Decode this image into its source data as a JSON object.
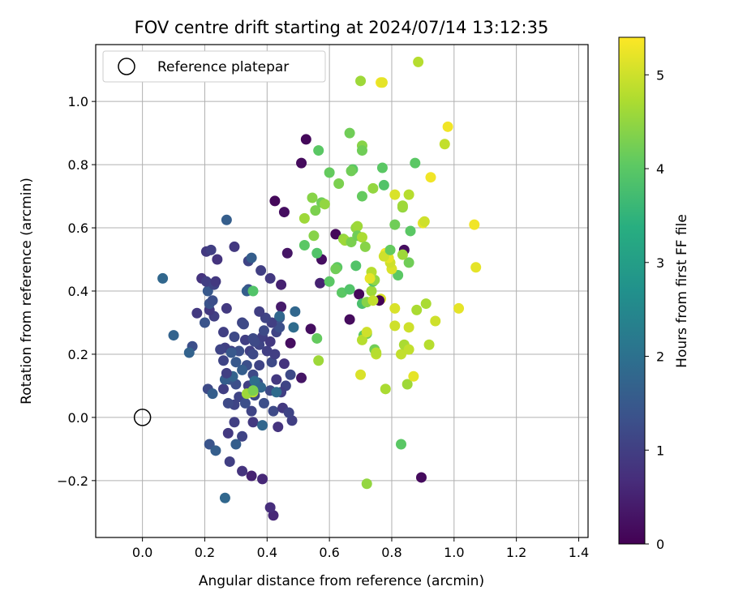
{
  "chart_data": {
    "type": "scatter",
    "title": "FOV centre drift starting at 2024/07/14 13:12:35",
    "xlabel": "Angular distance from reference (arcmin)",
    "ylabel": "Rotation from reference (arcmin)",
    "xlim": [
      -0.15,
      1.43
    ],
    "ylim": [
      -0.38,
      1.18
    ],
    "xticks": [
      "0.0",
      "0.2",
      "0.4",
      "0.6",
      "0.8",
      "1.0",
      "1.2",
      "1.4"
    ],
    "xtick_values": [
      0.0,
      0.2,
      0.4,
      0.6,
      0.8,
      1.0,
      1.2,
      1.4
    ],
    "yticks": [
      "−0.2",
      "0.0",
      "0.2",
      "0.4",
      "0.6",
      "0.8",
      "1.0"
    ],
    "ytick_values": [
      -0.2,
      0.0,
      0.2,
      0.4,
      0.6,
      0.8,
      1.0
    ],
    "grid": true,
    "colormap": "viridis",
    "colorbar": {
      "label": "Hours from first FF file",
      "range": [
        0,
        5.4
      ],
      "ticks": [
        "0",
        "1",
        "2",
        "3",
        "4",
        "5"
      ],
      "tick_values": [
        0,
        1,
        2,
        3,
        4,
        5
      ]
    },
    "legend": {
      "placement": "upper left",
      "label": "Reference platepar"
    },
    "reference": {
      "x": 0.0,
      "y": 0.0
    },
    "points": [
      {
        "x": 0.525,
        "y": 0.88,
        "c": 0.1
      },
      {
        "x": 0.51,
        "y": 0.805,
        "c": 0.15
      },
      {
        "x": 0.425,
        "y": 0.685,
        "c": 0.1
      },
      {
        "x": 0.455,
        "y": 0.65,
        "c": 0.2
      },
      {
        "x": 0.62,
        "y": 0.58,
        "c": 0.1
      },
      {
        "x": 0.575,
        "y": 0.5,
        "c": 0.2
      },
      {
        "x": 0.665,
        "y": 0.31,
        "c": 0.15
      },
      {
        "x": 0.695,
        "y": 0.39,
        "c": 0.1
      },
      {
        "x": 0.84,
        "y": 0.53,
        "c": 0.2
      },
      {
        "x": 0.895,
        "y": -0.19,
        "c": 0.15
      },
      {
        "x": 0.54,
        "y": 0.28,
        "c": 0.2
      },
      {
        "x": 0.475,
        "y": 0.235,
        "c": 0.2
      },
      {
        "x": 0.51,
        "y": 0.125,
        "c": 0.3
      },
      {
        "x": 0.465,
        "y": 0.52,
        "c": 0.3
      },
      {
        "x": 0.445,
        "y": 0.42,
        "c": 0.5
      },
      {
        "x": 0.445,
        "y": 0.35,
        "c": 0.4
      },
      {
        "x": 0.57,
        "y": 0.425,
        "c": 0.5
      },
      {
        "x": 0.42,
        "y": -0.31,
        "c": 0.6
      },
      {
        "x": 0.41,
        "y": -0.285,
        "c": 0.7
      },
      {
        "x": 0.385,
        "y": -0.195,
        "c": 0.6
      },
      {
        "x": 0.35,
        "y": -0.185,
        "c": 0.5
      },
      {
        "x": 0.32,
        "y": -0.17,
        "c": 0.8
      },
      {
        "x": 0.28,
        "y": -0.14,
        "c": 1.0
      },
      {
        "x": 0.275,
        "y": -0.05,
        "c": 0.9
      },
      {
        "x": 0.32,
        "y": -0.06,
        "c": 1.1
      },
      {
        "x": 0.295,
        "y": -0.015,
        "c": 1.0
      },
      {
        "x": 0.35,
        "y": 0.02,
        "c": 1.1
      },
      {
        "x": 0.355,
        "y": -0.015,
        "c": 0.9
      },
      {
        "x": 0.435,
        "y": -0.03,
        "c": 0.8
      },
      {
        "x": 0.48,
        "y": -0.01,
        "c": 1.0
      },
      {
        "x": 0.42,
        "y": 0.02,
        "c": 1.2
      },
      {
        "x": 0.45,
        "y": 0.03,
        "c": 0.9
      },
      {
        "x": 0.47,
        "y": 0.015,
        "c": 1.1
      },
      {
        "x": 0.39,
        "y": 0.045,
        "c": 1.3
      },
      {
        "x": 0.41,
        "y": 0.085,
        "c": 1.2
      },
      {
        "x": 0.46,
        "y": 0.1,
        "c": 1.1
      },
      {
        "x": 0.43,
        "y": 0.12,
        "c": 0.9
      },
      {
        "x": 0.445,
        "y": 0.08,
        "c": 1.0
      },
      {
        "x": 0.475,
        "y": 0.135,
        "c": 1.2
      },
      {
        "x": 0.455,
        "y": 0.17,
        "c": 0.8
      },
      {
        "x": 0.415,
        "y": 0.175,
        "c": 1.2
      },
      {
        "x": 0.425,
        "y": 0.2,
        "c": 1.0
      },
      {
        "x": 0.375,
        "y": 0.165,
        "c": 1.1
      },
      {
        "x": 0.345,
        "y": 0.21,
        "c": 1.0
      },
      {
        "x": 0.33,
        "y": 0.245,
        "c": 1.0
      },
      {
        "x": 0.355,
        "y": 0.25,
        "c": 1.2
      },
      {
        "x": 0.375,
        "y": 0.23,
        "c": 1.1
      },
      {
        "x": 0.385,
        "y": 0.255,
        "c": 1.0
      },
      {
        "x": 0.41,
        "y": 0.24,
        "c": 0.9
      },
      {
        "x": 0.43,
        "y": 0.27,
        "c": 1.1
      },
      {
        "x": 0.44,
        "y": 0.285,
        "c": 1.3
      },
      {
        "x": 0.44,
        "y": 0.315,
        "c": 1.4
      },
      {
        "x": 0.415,
        "y": 0.3,
        "c": 1.0
      },
      {
        "x": 0.395,
        "y": 0.315,
        "c": 1.1
      },
      {
        "x": 0.375,
        "y": 0.335,
        "c": 1.0
      },
      {
        "x": 0.39,
        "y": 0.275,
        "c": 1.2
      },
      {
        "x": 0.4,
        "y": 0.21,
        "c": 1.0
      },
      {
        "x": 0.355,
        "y": 0.2,
        "c": 1.2
      },
      {
        "x": 0.335,
        "y": 0.165,
        "c": 1.3
      },
      {
        "x": 0.355,
        "y": 0.135,
        "c": 1.2
      },
      {
        "x": 0.37,
        "y": 0.11,
        "c": 1.3
      },
      {
        "x": 0.34,
        "y": 0.1,
        "c": 1.0
      },
      {
        "x": 0.36,
        "y": 0.07,
        "c": 1.2
      },
      {
        "x": 0.31,
        "y": 0.065,
        "c": 1.1
      },
      {
        "x": 0.33,
        "y": 0.045,
        "c": 1.3
      },
      {
        "x": 0.295,
        "y": 0.04,
        "c": 1.1
      },
      {
        "x": 0.275,
        "y": 0.045,
        "c": 1.2
      },
      {
        "x": 0.26,
        "y": 0.09,
        "c": 1.0
      },
      {
        "x": 0.3,
        "y": 0.105,
        "c": 1.3
      },
      {
        "x": 0.28,
        "y": 0.12,
        "c": 1.4
      },
      {
        "x": 0.265,
        "y": 0.12,
        "c": 1.6
      },
      {
        "x": 0.29,
        "y": 0.13,
        "c": 1.7
      },
      {
        "x": 0.32,
        "y": 0.15,
        "c": 1.6
      },
      {
        "x": 0.3,
        "y": 0.175,
        "c": 1.5
      },
      {
        "x": 0.285,
        "y": 0.21,
        "c": 1.0
      },
      {
        "x": 0.265,
        "y": 0.22,
        "c": 1.0
      },
      {
        "x": 0.26,
        "y": 0.18,
        "c": 1.1
      },
      {
        "x": 0.27,
        "y": 0.14,
        "c": 1.0
      },
      {
        "x": 0.25,
        "y": 0.215,
        "c": 1.1
      },
      {
        "x": 0.26,
        "y": 0.27,
        "c": 1.0
      },
      {
        "x": 0.295,
        "y": 0.255,
        "c": 1.2
      },
      {
        "x": 0.32,
        "y": 0.3,
        "c": 1.1
      },
      {
        "x": 0.325,
        "y": 0.295,
        "c": 1.2
      },
      {
        "x": 0.31,
        "y": 0.21,
        "c": 1.3
      },
      {
        "x": 0.36,
        "y": 0.24,
        "c": 1.2
      },
      {
        "x": 0.27,
        "y": 0.345,
        "c": 0.9
      },
      {
        "x": 0.23,
        "y": 0.32,
        "c": 1.0
      },
      {
        "x": 0.215,
        "y": 0.34,
        "c": 0.9
      },
      {
        "x": 0.2,
        "y": 0.3,
        "c": 1.4
      },
      {
        "x": 0.175,
        "y": 0.33,
        "c": 0.9
      },
      {
        "x": 0.21,
        "y": 0.4,
        "c": 1.5
      },
      {
        "x": 0.215,
        "y": 0.36,
        "c": 1.4
      },
      {
        "x": 0.225,
        "y": 0.37,
        "c": 1.3
      },
      {
        "x": 0.19,
        "y": 0.44,
        "c": 0.8
      },
      {
        "x": 0.205,
        "y": 0.43,
        "c": 1.0
      },
      {
        "x": 0.23,
        "y": 0.42,
        "c": 1.1
      },
      {
        "x": 0.235,
        "y": 0.43,
        "c": 0.9
      },
      {
        "x": 0.205,
        "y": 0.525,
        "c": 0.9
      },
      {
        "x": 0.22,
        "y": 0.53,
        "c": 1.0
      },
      {
        "x": 0.24,
        "y": 0.5,
        "c": 0.8
      },
      {
        "x": 0.295,
        "y": 0.54,
        "c": 0.9
      },
      {
        "x": 0.27,
        "y": 0.625,
        "c": 1.6
      },
      {
        "x": 0.34,
        "y": 0.495,
        "c": 1.1
      },
      {
        "x": 0.35,
        "y": 0.505,
        "c": 1.6
      },
      {
        "x": 0.38,
        "y": 0.465,
        "c": 1.0
      },
      {
        "x": 0.41,
        "y": 0.44,
        "c": 0.9
      },
      {
        "x": 0.34,
        "y": 0.405,
        "c": 1.3
      },
      {
        "x": 0.335,
        "y": 0.4,
        "c": 1.6
      },
      {
        "x": 0.16,
        "y": 0.225,
        "c": 1.3
      },
      {
        "x": 0.15,
        "y": 0.205,
        "c": 1.7
      },
      {
        "x": 0.1,
        "y": 0.26,
        "c": 1.7
      },
      {
        "x": 0.065,
        "y": 0.44,
        "c": 1.8
      },
      {
        "x": 0.21,
        "y": 0.09,
        "c": 1.2
      },
      {
        "x": 0.225,
        "y": 0.075,
        "c": 1.6
      },
      {
        "x": 0.215,
        "y": -0.085,
        "c": 1.4
      },
      {
        "x": 0.235,
        "y": -0.105,
        "c": 1.6
      },
      {
        "x": 0.3,
        "y": -0.085,
        "c": 1.6
      },
      {
        "x": 0.265,
        "y": -0.255,
        "c": 1.8
      },
      {
        "x": 0.385,
        "y": -0.025,
        "c": 1.8
      },
      {
        "x": 0.36,
        "y": 0.115,
        "c": 1.9
      },
      {
        "x": 0.38,
        "y": 0.095,
        "c": 1.8
      },
      {
        "x": 0.43,
        "y": 0.08,
        "c": 1.9
      },
      {
        "x": 0.49,
        "y": 0.335,
        "c": 1.8
      },
      {
        "x": 0.485,
        "y": 0.285,
        "c": 1.9
      },
      {
        "x": 0.44,
        "y": 0.32,
        "c": 1.8
      },
      {
        "x": 0.285,
        "y": 0.205,
        "c": 1.5
      },
      {
        "x": 0.355,
        "y": 0.08,
        "c": 4.9
      },
      {
        "x": 0.335,
        "y": 0.075,
        "c": 4.6
      },
      {
        "x": 0.355,
        "y": 0.085,
        "c": 4.3
      },
      {
        "x": 0.355,
        "y": 0.4,
        "c": 3.9
      },
      {
        "x": 0.52,
        "y": 0.545,
        "c": 4.0
      },
      {
        "x": 0.55,
        "y": 0.575,
        "c": 4.4
      },
      {
        "x": 0.545,
        "y": 0.695,
        "c": 4.4
      },
      {
        "x": 0.555,
        "y": 0.655,
        "c": 4.3
      },
      {
        "x": 0.52,
        "y": 0.63,
        "c": 4.6
      },
      {
        "x": 0.565,
        "y": 0.845,
        "c": 4.0
      },
      {
        "x": 0.575,
        "y": 0.68,
        "c": 4.2
      },
      {
        "x": 0.585,
        "y": 0.675,
        "c": 4.5
      },
      {
        "x": 0.6,
        "y": 0.775,
        "c": 4.1
      },
      {
        "x": 0.63,
        "y": 0.74,
        "c": 4.3
      },
      {
        "x": 0.625,
        "y": 0.475,
        "c": 4.0
      },
      {
        "x": 0.62,
        "y": 0.47,
        "c": 4.2
      },
      {
        "x": 0.6,
        "y": 0.43,
        "c": 4.0
      },
      {
        "x": 0.56,
        "y": 0.52,
        "c": 3.9
      },
      {
        "x": 0.56,
        "y": 0.25,
        "c": 4.1
      },
      {
        "x": 0.565,
        "y": 0.18,
        "c": 4.6
      },
      {
        "x": 0.64,
        "y": 0.395,
        "c": 4.0
      },
      {
        "x": 0.665,
        "y": 0.405,
        "c": 3.9
      },
      {
        "x": 0.645,
        "y": 0.565,
        "c": 4.5
      },
      {
        "x": 0.65,
        "y": 0.56,
        "c": 4.6
      },
      {
        "x": 0.67,
        "y": 0.555,
        "c": 4.3
      },
      {
        "x": 0.685,
        "y": 0.6,
        "c": 4.5
      },
      {
        "x": 0.69,
        "y": 0.605,
        "c": 4.6
      },
      {
        "x": 0.69,
        "y": 0.575,
        "c": 4.2
      },
      {
        "x": 0.705,
        "y": 0.57,
        "c": 4.7
      },
      {
        "x": 0.715,
        "y": 0.54,
        "c": 4.4
      },
      {
        "x": 0.685,
        "y": 0.48,
        "c": 3.9
      },
      {
        "x": 0.705,
        "y": 0.36,
        "c": 3.8
      },
      {
        "x": 0.72,
        "y": 0.365,
        "c": 4.4
      },
      {
        "x": 0.735,
        "y": 0.4,
        "c": 4.6
      },
      {
        "x": 0.74,
        "y": 0.43,
        "c": 4.0
      },
      {
        "x": 0.745,
        "y": 0.435,
        "c": 4.5
      },
      {
        "x": 0.735,
        "y": 0.46,
        "c": 4.8
      },
      {
        "x": 0.71,
        "y": 0.26,
        "c": 4.0
      },
      {
        "x": 0.72,
        "y": 0.265,
        "c": 4.2
      },
      {
        "x": 0.705,
        "y": 0.245,
        "c": 4.8
      },
      {
        "x": 0.72,
        "y": 0.27,
        "c": 5.0
      },
      {
        "x": 0.745,
        "y": 0.215,
        "c": 4.2
      },
      {
        "x": 0.75,
        "y": 0.2,
        "c": 4.9
      },
      {
        "x": 0.75,
        "y": 0.205,
        "c": 4.8
      },
      {
        "x": 0.7,
        "y": 0.135,
        "c": 5.1
      },
      {
        "x": 0.78,
        "y": 0.09,
        "c": 4.7
      },
      {
        "x": 0.72,
        "y": -0.21,
        "c": 4.5
      },
      {
        "x": 0.83,
        "y": -0.085,
        "c": 4.0
      },
      {
        "x": 0.83,
        "y": 0.2,
        "c": 4.9
      },
      {
        "x": 0.84,
        "y": 0.23,
        "c": 4.7
      },
      {
        "x": 0.855,
        "y": 0.215,
        "c": 4.9
      },
      {
        "x": 0.85,
        "y": 0.105,
        "c": 4.6
      },
      {
        "x": 0.87,
        "y": 0.13,
        "c": 5.2
      },
      {
        "x": 0.855,
        "y": 0.285,
        "c": 5.0
      },
      {
        "x": 0.81,
        "y": 0.29,
        "c": 5.0
      },
      {
        "x": 0.81,
        "y": 0.345,
        "c": 5.1
      },
      {
        "x": 0.88,
        "y": 0.34,
        "c": 4.7
      },
      {
        "x": 0.91,
        "y": 0.36,
        "c": 4.7
      },
      {
        "x": 0.92,
        "y": 0.23,
        "c": 4.8
      },
      {
        "x": 0.94,
        "y": 0.305,
        "c": 5.0
      },
      {
        "x": 1.015,
        "y": 0.345,
        "c": 5.2
      },
      {
        "x": 1.07,
        "y": 0.475,
        "c": 5.2
      },
      {
        "x": 1.065,
        "y": 0.61,
        "c": 5.3
      },
      {
        "x": 0.9,
        "y": 0.615,
        "c": 5.2
      },
      {
        "x": 0.905,
        "y": 0.62,
        "c": 5.0
      },
      {
        "x": 0.86,
        "y": 0.59,
        "c": 4.0
      },
      {
        "x": 0.855,
        "y": 0.49,
        "c": 4.2
      },
      {
        "x": 0.835,
        "y": 0.515,
        "c": 4.6
      },
      {
        "x": 0.82,
        "y": 0.45,
        "c": 4.0
      },
      {
        "x": 0.8,
        "y": 0.47,
        "c": 5.1
      },
      {
        "x": 0.795,
        "y": 0.49,
        "c": 5.0
      },
      {
        "x": 0.79,
        "y": 0.505,
        "c": 5.2
      },
      {
        "x": 0.78,
        "y": 0.52,
        "c": 5.3
      },
      {
        "x": 0.775,
        "y": 0.51,
        "c": 5.0
      },
      {
        "x": 0.795,
        "y": 0.53,
        "c": 4.1
      },
      {
        "x": 0.81,
        "y": 0.61,
        "c": 4.2
      },
      {
        "x": 0.835,
        "y": 0.665,
        "c": 4.5
      },
      {
        "x": 0.81,
        "y": 0.705,
        "c": 5.1
      },
      {
        "x": 0.855,
        "y": 0.705,
        "c": 4.8
      },
      {
        "x": 0.835,
        "y": 0.67,
        "c": 4.6
      },
      {
        "x": 0.875,
        "y": 0.805,
        "c": 4.0
      },
      {
        "x": 0.775,
        "y": 0.735,
        "c": 3.9
      },
      {
        "x": 0.77,
        "y": 0.79,
        "c": 4.0
      },
      {
        "x": 0.74,
        "y": 0.725,
        "c": 4.5
      },
      {
        "x": 0.705,
        "y": 0.7,
        "c": 4.1
      },
      {
        "x": 0.675,
        "y": 0.785,
        "c": 4.0
      },
      {
        "x": 0.67,
        "y": 0.78,
        "c": 4.2
      },
      {
        "x": 0.665,
        "y": 0.9,
        "c": 4.2
      },
      {
        "x": 0.705,
        "y": 0.86,
        "c": 4.4
      },
      {
        "x": 0.705,
        "y": 0.845,
        "c": 4.2
      },
      {
        "x": 0.7,
        "y": 1.065,
        "c": 4.6
      },
      {
        "x": 0.765,
        "y": 1.06,
        "c": 5.3
      },
      {
        "x": 0.77,
        "y": 1.06,
        "c": 5.2
      },
      {
        "x": 0.885,
        "y": 1.125,
        "c": 4.8
      },
      {
        "x": 0.925,
        "y": 0.76,
        "c": 5.3
      },
      {
        "x": 0.98,
        "y": 0.92,
        "c": 5.3
      },
      {
        "x": 0.97,
        "y": 0.865,
        "c": 4.9
      },
      {
        "x": 0.73,
        "y": 0.44,
        "c": 5.2
      },
      {
        "x": 0.765,
        "y": 0.375,
        "c": 5.1
      },
      {
        "x": 0.76,
        "y": 0.37,
        "c": 0.0
      },
      {
        "x": 0.74,
        "y": 0.37,
        "c": 4.9
      }
    ]
  }
}
